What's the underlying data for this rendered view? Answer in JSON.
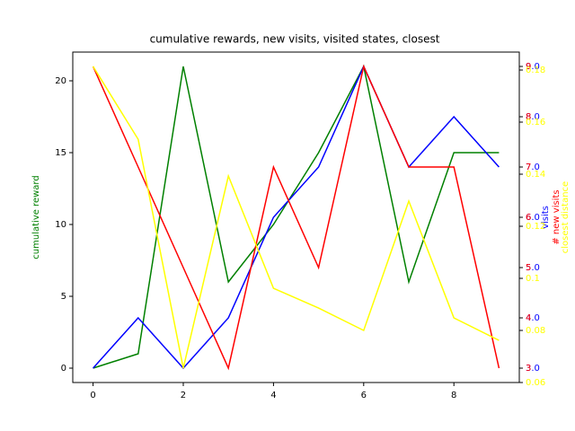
{
  "chart_data": {
    "type": "line",
    "title": "cumulative rewards, new visits, visited states, closest",
    "x": [
      0,
      1,
      2,
      3,
      4,
      5,
      6,
      7,
      8,
      9
    ],
    "xlim": [
      -0.45,
      9.45
    ],
    "xticks": [
      0,
      2,
      4,
      6,
      8
    ],
    "y_axes": [
      {
        "label": "cumulative reward",
        "color": "green",
        "ylim": [
          -1,
          22
        ],
        "yticks": [
          0,
          5,
          10,
          15,
          20
        ]
      },
      {
        "label": "visits",
        "color": "blue",
        "ylim": [
          2.714,
          9.286
        ],
        "yticks": [
          {
            "value": 3,
            "label": "3.0"
          },
          {
            "value": 4,
            "label": "4.0"
          },
          {
            "value": 5,
            "label": "5.0"
          },
          {
            "value": 6,
            "label": "6.0"
          },
          {
            "value": 7,
            "label": "7.0"
          },
          {
            "value": 8,
            "label": "8.0"
          },
          {
            "value": 9,
            "label": "9.0"
          }
        ]
      },
      {
        "label": "# new visits",
        "color": "red",
        "ylim": [
          2.714,
          9.286
        ],
        "yticks": [
          3,
          4,
          5,
          6,
          7,
          8,
          9
        ]
      },
      {
        "label": "closest distance",
        "color": "yellow",
        "ylim": [
          0.06,
          0.1869
        ],
        "yticks": [
          0.06,
          0.08,
          0.1,
          0.12,
          0.14,
          0.16,
          0.18
        ]
      }
    ],
    "series": [
      {
        "name": "cumulative reward",
        "color": "green",
        "axis": 0,
        "values": [
          0,
          1,
          21,
          6,
          10,
          15,
          21,
          6,
          15,
          15
        ]
      },
      {
        "name": "visits",
        "color": "blue",
        "axis": 1,
        "values": [
          3,
          4,
          3,
          4,
          6,
          7,
          9,
          7,
          8,
          7
        ]
      },
      {
        "name": "# new visits",
        "color": "red",
        "axis": 2,
        "values": [
          9,
          7,
          5,
          3,
          7,
          5,
          9,
          7,
          7,
          3
        ]
      },
      {
        "name": "closest distance",
        "color": "yellow",
        "axis": 3,
        "values": [
          0.1814,
          0.1534,
          0.0655,
          0.1393,
          0.0962,
          0.0886,
          0.08,
          0.1297,
          0.0848,
          0.0762
        ]
      }
    ]
  }
}
